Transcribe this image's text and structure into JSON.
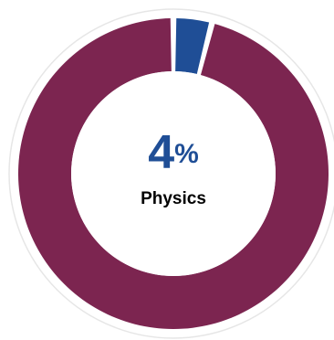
{
  "chart_data": {
    "type": "pie",
    "variant": "donut",
    "slices": [
      {
        "name": "Physics",
        "value": 4,
        "color": "#1f4e96"
      },
      {
        "name": "",
        "value": 96,
        "color": "#7c2550"
      }
    ],
    "center": {
      "value_number": "4",
      "value_unit": "%",
      "label": "Physics",
      "value_color": "#1f4e96",
      "label_color": "#000000"
    },
    "outer_ring_color": "#e6e6e6",
    "gap_color": "#ffffff"
  }
}
